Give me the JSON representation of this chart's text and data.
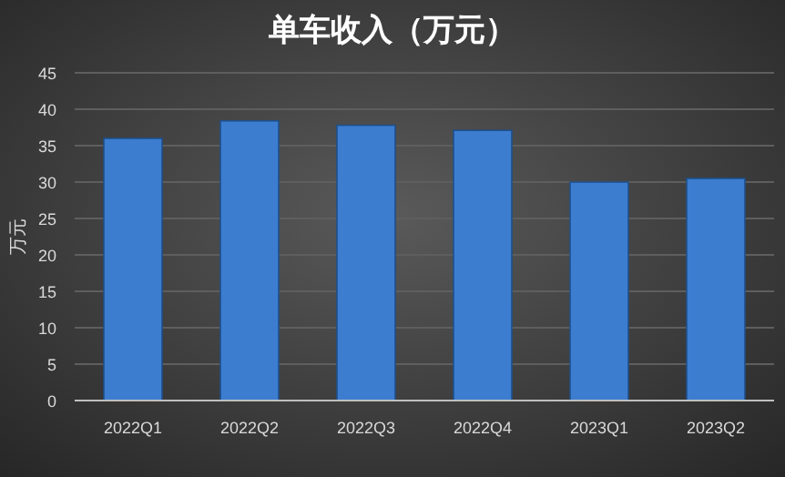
{
  "chart_data": {
    "type": "bar",
    "title": "单车收入（万元）",
    "ylabel": "万元",
    "categories": [
      "2022Q1",
      "2022Q2",
      "2022Q3",
      "2022Q4",
      "2023Q1",
      "2023Q2"
    ],
    "values": [
      36.0,
      38.4,
      37.8,
      37.1,
      30.0,
      30.5
    ],
    "color": "#3c7dd0",
    "ylim": [
      0,
      45
    ],
    "yticks": [
      0,
      5,
      10,
      15,
      20,
      25,
      30,
      35,
      40,
      45
    ],
    "grid": "y"
  }
}
